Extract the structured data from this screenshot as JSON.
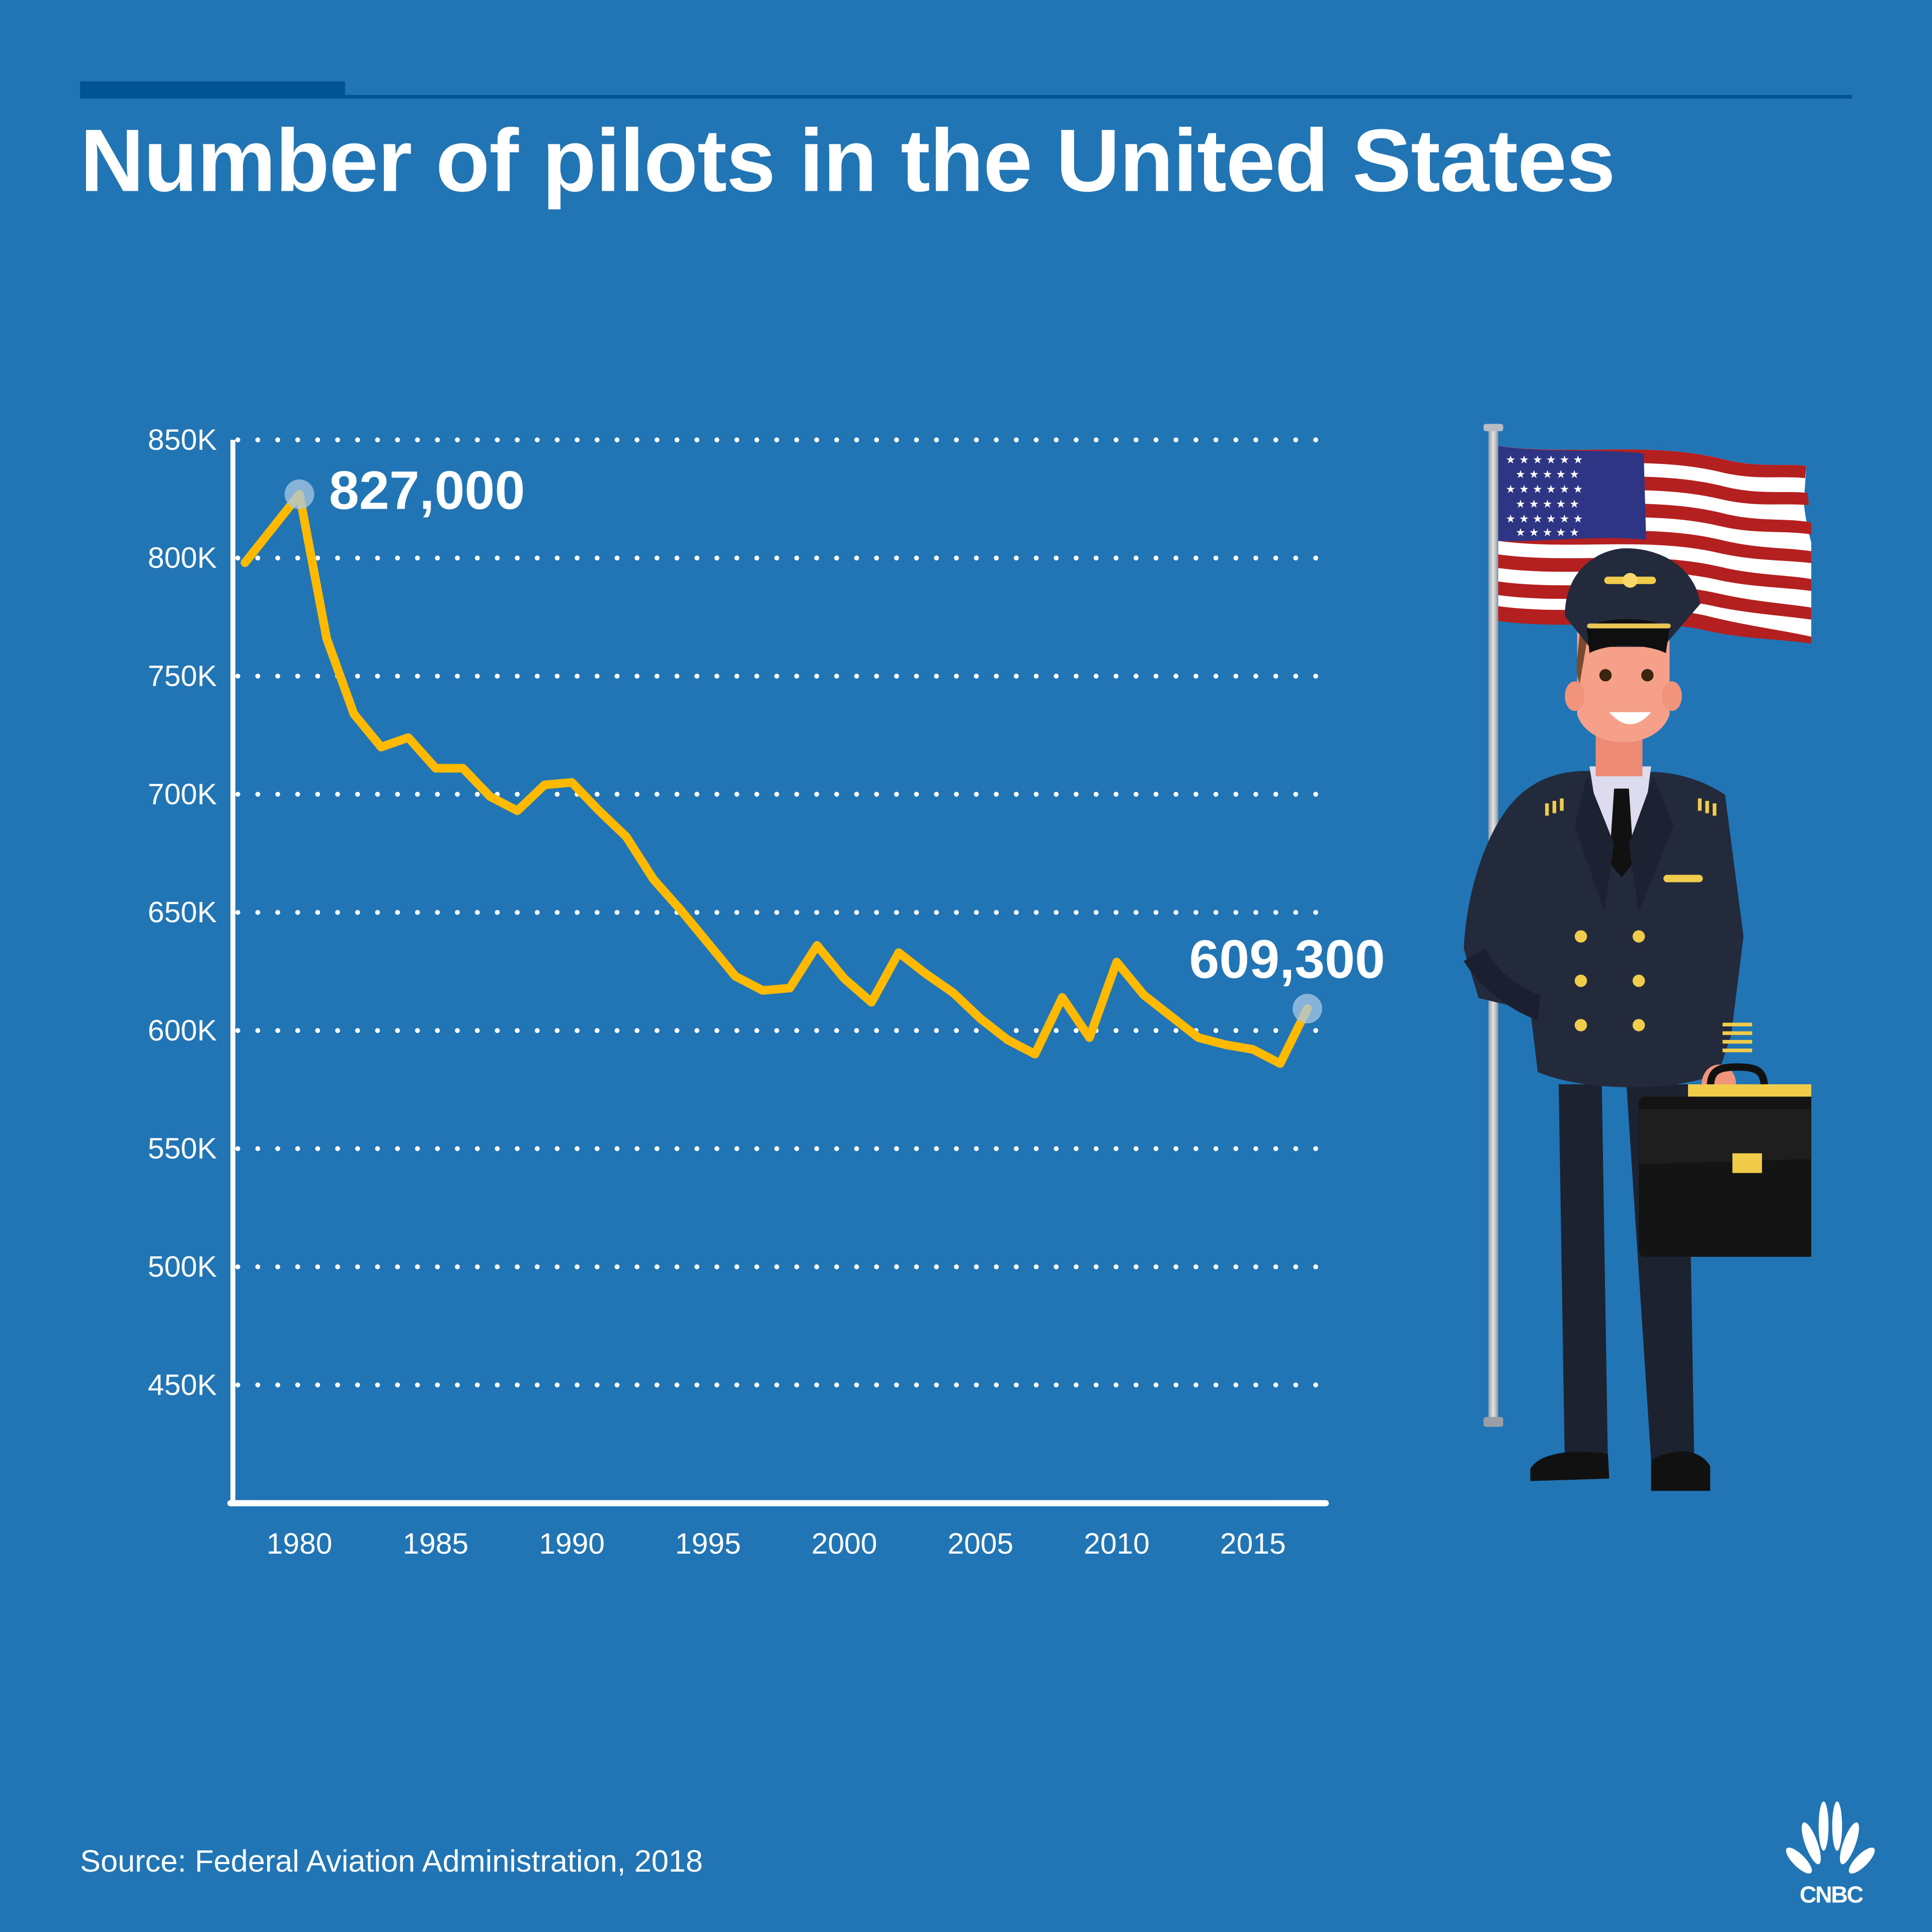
{
  "header": {
    "title": "Number of pilots in the United States"
  },
  "footer": {
    "source": "Source: Federal Aviation Administration, 2018",
    "brand": "CNBC"
  },
  "illustration": {
    "description": "Cartoon airline pilot in navy uniform holding a briefcase, standing in front of a waving United States flag",
    "icons": [
      "us-flag-icon",
      "pilot-icon",
      "briefcase-icon",
      "cnbc-peacock-logo-icon"
    ]
  },
  "colors": {
    "background": "#2175b5",
    "accent_stripe": "#005494",
    "line": "#ffba00",
    "text": "#ffffff",
    "highlight_marker": "#a9c8e6"
  },
  "chart_data": {
    "type": "line",
    "title": "Number of pilots in the United States",
    "xlabel": "",
    "ylabel": "",
    "x": [
      1978,
      1980,
      1981,
      1982,
      1983,
      1984,
      1985,
      1986,
      1987,
      1988,
      1989,
      1990,
      1991,
      1992,
      1993,
      1994,
      1995,
      1996,
      1997,
      1998,
      1999,
      2000,
      2001,
      2002,
      2003,
      2004,
      2005,
      2006,
      2007,
      2008,
      2009,
      2010,
      2011,
      2012,
      2013,
      2014,
      2015,
      2016,
      2017
    ],
    "series": [
      {
        "name": "Pilots",
        "values": [
          798000,
          827000,
          766000,
          734000,
          720000,
          724000,
          711000,
          711000,
          699000,
          693000,
          704000,
          705000,
          693000,
          682000,
          664000,
          651000,
          637000,
          623000,
          617000,
          618000,
          636000,
          622000,
          612000,
          633000,
          624000,
          616000,
          605000,
          596000,
          590000,
          614000,
          597000,
          629000,
          615000,
          606000,
          597000,
          594000,
          592000,
          586000,
          609300
        ]
      }
    ],
    "annotations": [
      {
        "x": 1980,
        "y": 827000,
        "label": "827,000"
      },
      {
        "x": 2017,
        "y": 609300,
        "label": "609,300"
      }
    ],
    "yticks": [
      450000,
      500000,
      550000,
      600000,
      650000,
      700000,
      750000,
      800000,
      850000
    ],
    "ytick_labels": [
      "450K",
      "500K",
      "550K",
      "600K",
      "650K",
      "700K",
      "750K",
      "800K",
      "850K"
    ],
    "xticks": [
      1980,
      1985,
      1990,
      1995,
      2000,
      2005,
      2010,
      2015
    ],
    "xtick_labels": [
      "1980",
      "1985",
      "1990",
      "1995",
      "2000",
      "2005",
      "2010",
      "2015"
    ],
    "ylim": [
      400000,
      850000
    ],
    "xlim": [
      1977.8,
      2017.5
    ],
    "grid": true,
    "grid_style": "dotted horizontal",
    "legend": "none"
  }
}
